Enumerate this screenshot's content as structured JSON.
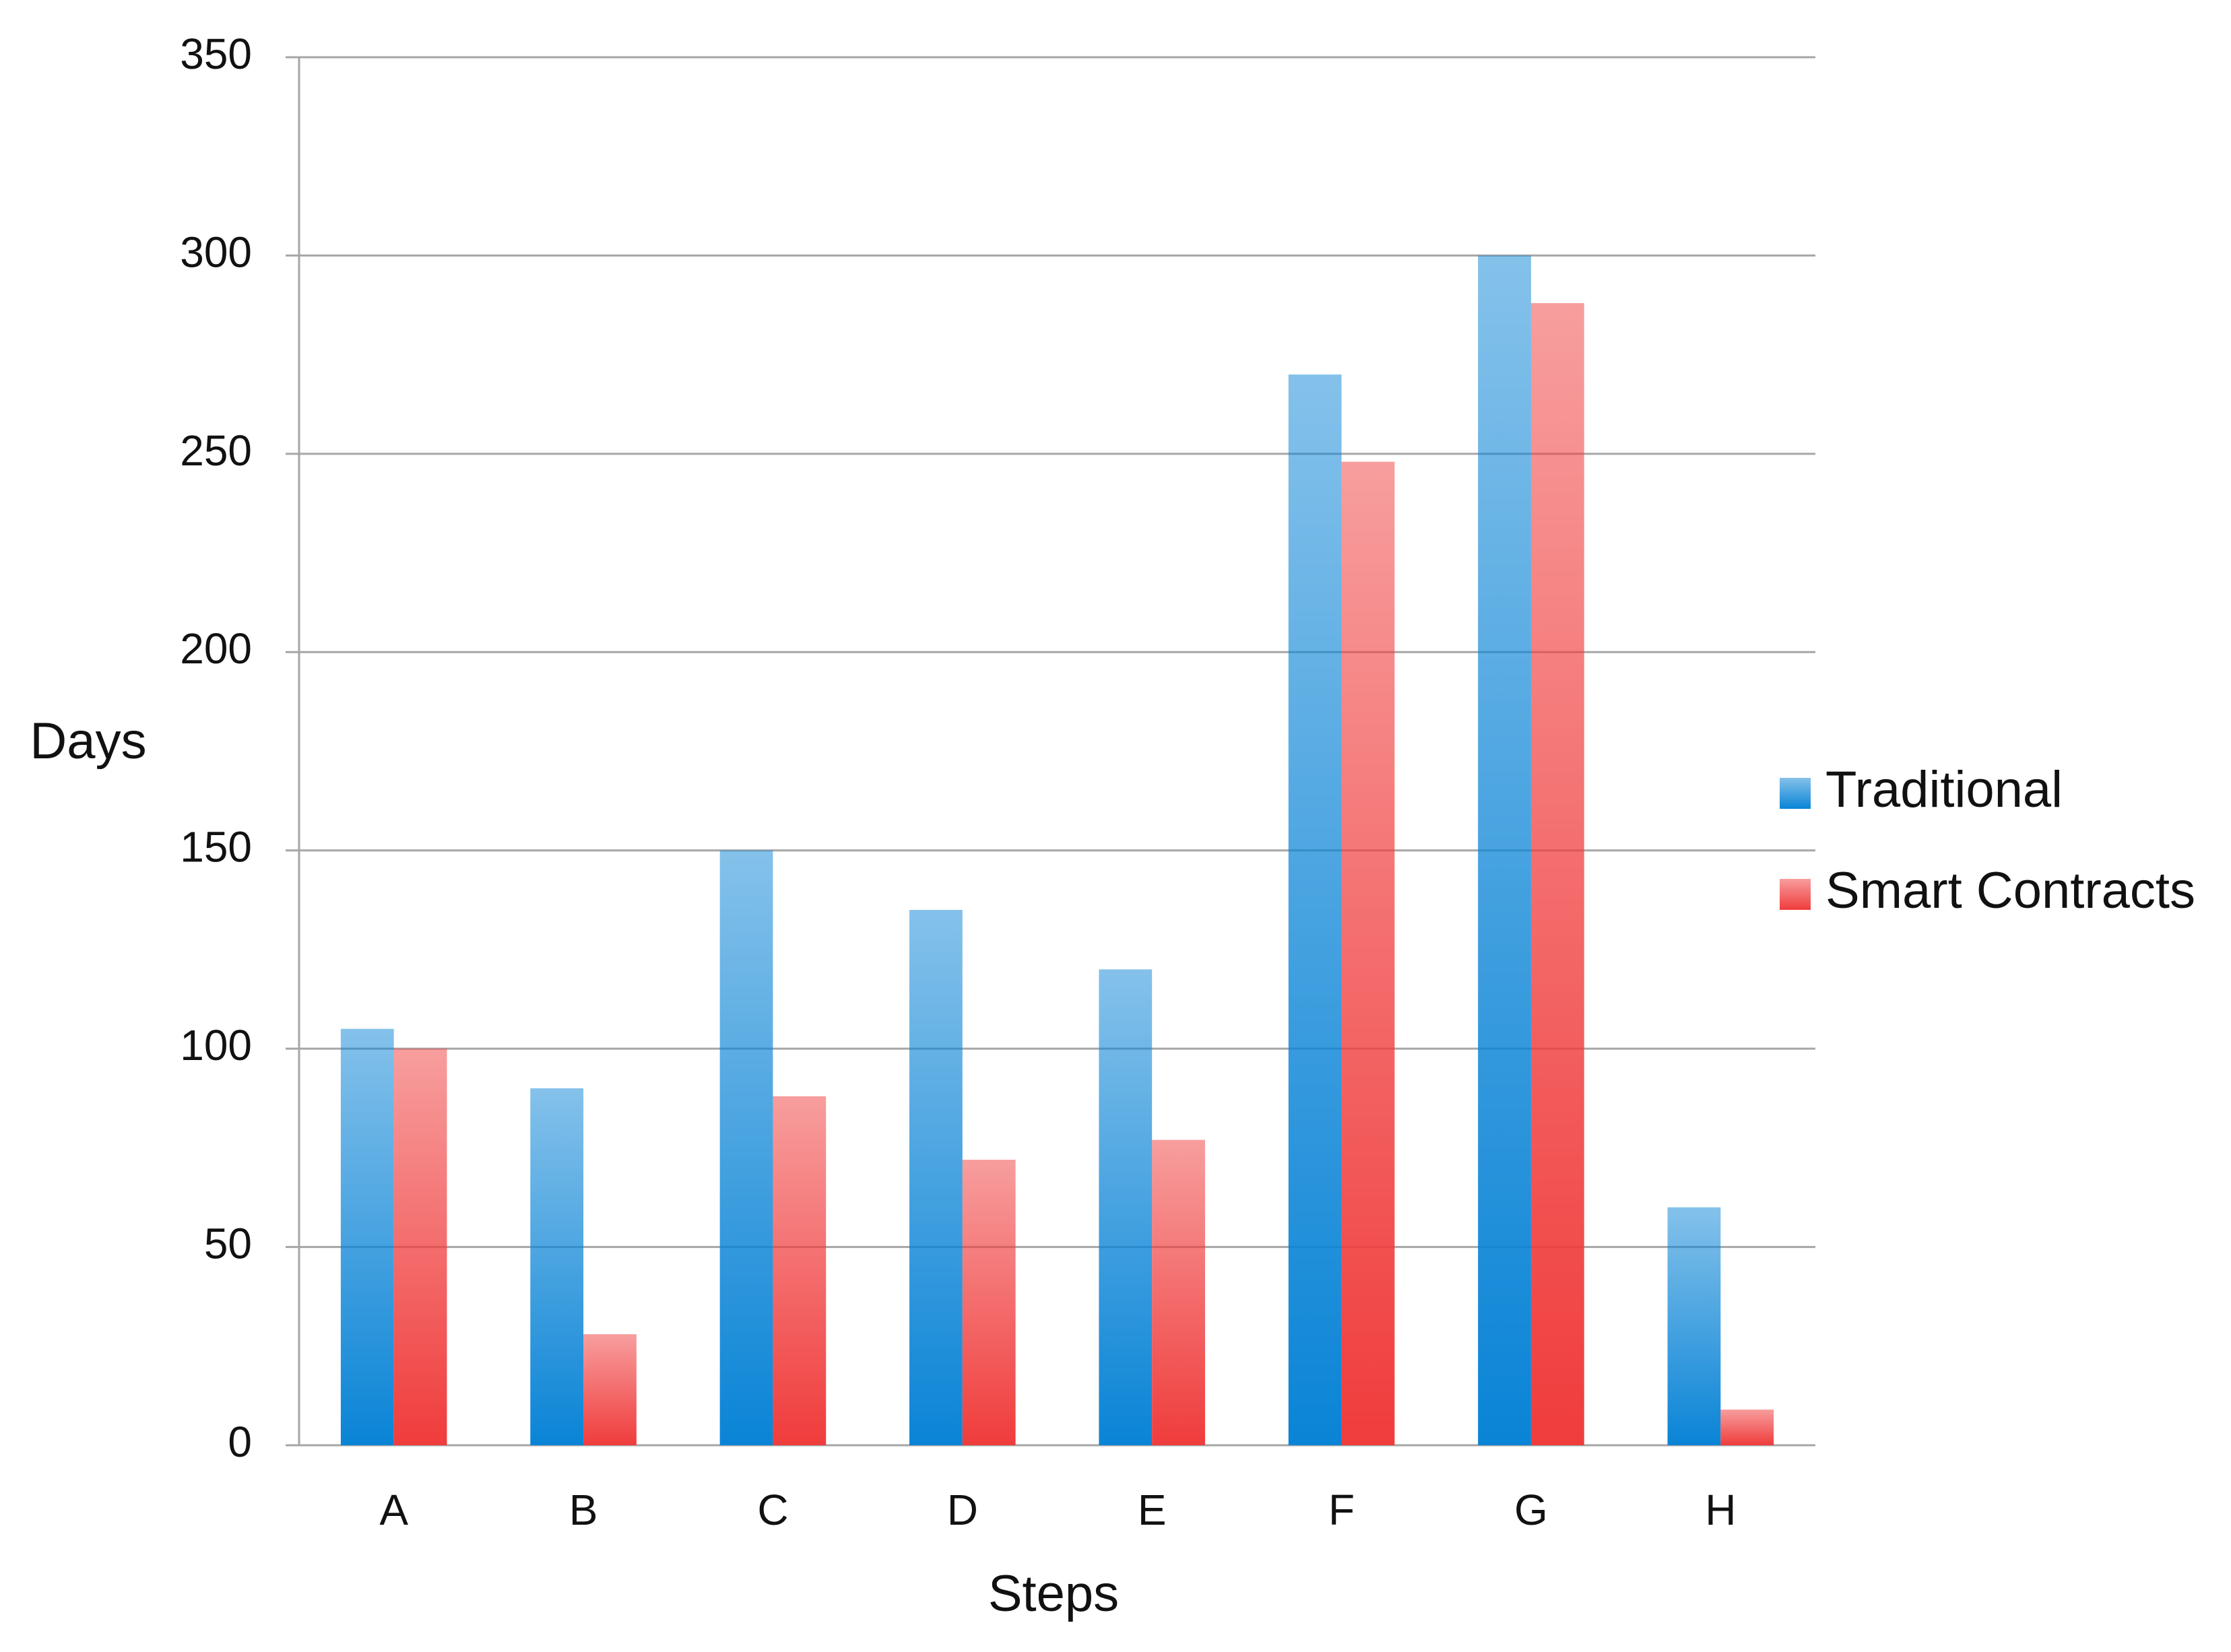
{
  "chart_data": {
    "type": "bar",
    "x_label": "Steps",
    "y_label": "Days",
    "categories": [
      "A",
      "B",
      "C",
      "D",
      "E",
      "F",
      "G",
      "H"
    ],
    "series": [
      {
        "name": "Traditional",
        "color": "#0a84d6",
        "values": [
          105,
          90,
          150,
          135,
          120,
          270,
          300,
          60
        ]
      },
      {
        "name": "Smart Contracts",
        "color": "#f03c3c",
        "values": [
          100,
          28,
          88,
          72,
          77,
          248,
          288,
          9
        ]
      }
    ],
    "ylim": [
      0,
      350
    ],
    "yticks": [
      0,
      50,
      100,
      150,
      200,
      250,
      300,
      350
    ],
    "grid": true,
    "legend": "right"
  }
}
